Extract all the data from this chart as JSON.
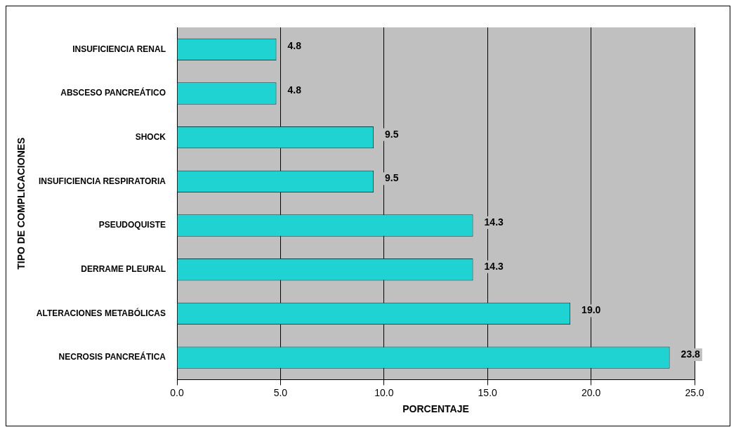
{
  "chart_data": {
    "type": "bar",
    "orientation": "horizontal",
    "xlabel": "PORCENTAJE",
    "ylabel": "TIPO DE COMPLICACIONES",
    "categories": [
      "INSUFICIENCIA RENAL",
      "ABSCESO PANCREÁTICO",
      "SHOCK",
      "INSUFICIENCIA RESPIRATORIA",
      "PSEUDOQUISTE",
      "DERRAME PLEURAL",
      "ALTERACIONES METABÓLICAS",
      "NECROSIS PANCREÁTICA"
    ],
    "values": [
      4.8,
      4.8,
      9.5,
      9.5,
      14.3,
      14.3,
      19.0,
      23.8
    ],
    "value_labels": [
      "4.8",
      "4.8",
      "9.5",
      "9.5",
      "14.3",
      "14.3",
      "19.0",
      "23.8"
    ],
    "color": "#1fd3d3",
    "xlim": [
      0,
      25
    ],
    "xticks": [
      {
        "value": 0,
        "label": "0.0"
      },
      {
        "value": 5,
        "label": "5.0"
      },
      {
        "value": 10,
        "label": "10.0"
      },
      {
        "value": 15,
        "label": "15.0"
      },
      {
        "value": 20,
        "label": "20.0"
      },
      {
        "value": 25,
        "label": "25.0"
      }
    ],
    "grid": "x",
    "legend": false
  }
}
